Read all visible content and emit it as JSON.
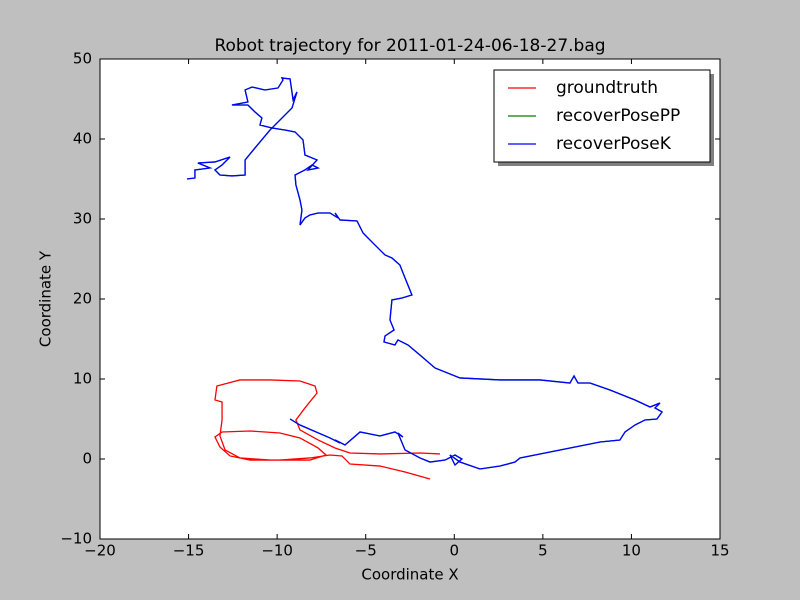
{
  "chart_data": {
    "type": "line",
    "title": "Robot trajectory for 2011-01-24-06-18-27.bag",
    "x_label": "Coordinate X",
    "y_label": "Coordinate Y",
    "xlim": [
      -20,
      15
    ],
    "ylim": [
      -10,
      50
    ],
    "xticks": [
      {
        "value": -20,
        "label": "−20"
      },
      {
        "value": -15,
        "label": "−15"
      },
      {
        "value": -10,
        "label": "−10"
      },
      {
        "value": -5,
        "label": "−5"
      },
      0,
      5,
      10,
      15
    ],
    "yticks": [
      {
        "value": -10,
        "label": "−10"
      },
      0,
      10,
      20,
      30,
      40,
      50
    ],
    "legend": "upper right",
    "series": [
      {
        "name": "groundtruth",
        "color": "#ff0000",
        "x": [
          -1.37,
          -2.78,
          -4.19,
          -5.89,
          -6.34,
          -7.02,
          -8.15,
          -9.84,
          -11.53,
          -12.66,
          -13.23,
          -13.51,
          -13.11,
          -11.53,
          -9.84,
          -8.71,
          -7.69,
          -7.24,
          -8.15,
          -10.4,
          -12.1,
          -12.94,
          -13.23,
          -13.11,
          -13.11,
          -13.51,
          -13.4,
          -12.1,
          -10.4,
          -8.71,
          -7.86,
          -7.75,
          -8.43,
          -8.94,
          -8.71,
          -7.69,
          -6.73,
          -5.89,
          -4.19,
          -1.94,
          -0.81
        ],
        "values": [
          -2.5,
          -1.63,
          -0.88,
          -0.63,
          0.38,
          0.5,
          0.13,
          -0.13,
          -0.13,
          0.38,
          1.5,
          2.75,
          3.38,
          3.5,
          3.25,
          2.63,
          1.38,
          0.5,
          -0.13,
          -0.13,
          0.13,
          1.13,
          2.88,
          4.88,
          7.13,
          7.38,
          9.13,
          9.88,
          9.88,
          9.75,
          9.13,
          8.25,
          6.38,
          4.88,
          3.63,
          2.38,
          1.38,
          0.75,
          0.63,
          0.75,
          0.63
        ]
      },
      {
        "name": "recoverPosePP",
        "color": "#008000",
        "x": [
          -9.27,
          -8.71,
          -7.02,
          -6.45,
          -6.73,
          -6.17,
          -5.32,
          -4.19,
          -3.35,
          -2.9,
          -3.18,
          -2.78,
          -1.94,
          -1.37,
          -0.52,
          0.04,
          0.43,
          0.04,
          -0.24,
          0.32,
          1.45,
          2.58,
          3.43,
          3.71,
          5.97,
          8.23,
          9.35,
          9.64,
          10.2,
          10.77,
          11.44,
          11.73,
          11.33,
          11.61,
          11.05,
          10.2,
          8.79,
          7.66,
          6.98,
          6.76,
          6.53,
          4.84,
          2.58,
          0.32,
          -1.09,
          -1.94,
          -2.61,
          -3.18,
          -3.35,
          -3.97,
          -3.91,
          -3.4,
          -3.63,
          -3.52,
          -2.95,
          -2.39,
          -2.78,
          -3.07,
          -3.52,
          -3.91,
          -4.65,
          -5.15,
          -5.49,
          -6.45,
          -6.73,
          -6.56,
          -7.02,
          -7.69,
          -8.15,
          -8.43,
          -8.71,
          -8.6,
          -8.71,
          -8.94,
          -8.99,
          -8.43,
          -8.03,
          -7.69,
          -8.26,
          -7.75,
          -8.43,
          -8.54,
          -8.99,
          -9.56,
          -10.29,
          -10.97,
          -10.86,
          -11.25,
          -11.65,
          -12.55,
          -11.65,
          -11.81,
          -11.42,
          -10.69,
          -9.95,
          -9.67,
          -9.73,
          -9.27,
          -9.1,
          -8.88,
          -9.16,
          -10.4,
          -11.25,
          -11.81,
          -11.81,
          -12.55,
          -13.23,
          -13.51,
          -13.11,
          -12.66,
          -13.51,
          -14.47,
          -13.79,
          -14.64,
          -14.64,
          -15.09
        ],
        "values": [
          5.0,
          4.25,
          2.63,
          2.0,
          2.38,
          1.75,
          3.38,
          2.88,
          3.38,
          2.75,
          3.25,
          1.13,
          0.13,
          -0.38,
          -0.13,
          0.5,
          0.0,
          -0.75,
          0.5,
          -0.38,
          -1.25,
          -0.88,
          -0.38,
          0.13,
          1.13,
          2.13,
          2.38,
          3.38,
          4.25,
          4.88,
          5.0,
          5.88,
          6.38,
          7.0,
          6.5,
          7.38,
          8.63,
          9.5,
          9.5,
          10.38,
          9.5,
          9.88,
          9.88,
          10.13,
          11.38,
          13.0,
          14.25,
          14.88,
          14.25,
          14.63,
          15.38,
          16.13,
          17.38,
          19.88,
          20.13,
          20.5,
          22.63,
          24.25,
          25.13,
          25.5,
          27.13,
          28.25,
          29.75,
          29.88,
          30.75,
          30.13,
          30.75,
          30.75,
          30.5,
          30.13,
          29.25,
          31.13,
          32.38,
          34.25,
          35.5,
          36.13,
          36.75,
          36.38,
          36.13,
          37.38,
          38.0,
          39.88,
          40.88,
          41.13,
          41.38,
          41.75,
          42.63,
          43.38,
          44.25,
          44.25,
          44.63,
          46.13,
          46.5,
          46.13,
          46.38,
          47.38,
          47.63,
          47.5,
          44.88,
          45.88,
          43.88,
          41.13,
          38.88,
          37.38,
          35.5,
          35.38,
          35.5,
          36.13,
          36.75,
          37.75,
          37.13,
          37.0,
          36.38,
          36.13,
          35.13,
          35.0
        ]
      },
      {
        "name": "recoverPoseK",
        "color": "#0000ff",
        "x": [
          -9.27,
          -8.71,
          -7.02,
          -6.45,
          -6.73,
          -6.17,
          -5.32,
          -4.19,
          -3.35,
          -2.9,
          -3.18,
          -2.78,
          -1.94,
          -1.37,
          -0.52,
          0.04,
          0.43,
          0.04,
          -0.24,
          0.32,
          1.45,
          2.58,
          3.43,
          3.71,
          5.97,
          8.23,
          9.35,
          9.64,
          10.2,
          10.77,
          11.44,
          11.73,
          11.33,
          11.61,
          11.05,
          10.2,
          8.79,
          7.66,
          6.98,
          6.76,
          6.53,
          4.84,
          2.58,
          0.32,
          -1.09,
          -1.94,
          -2.61,
          -3.18,
          -3.35,
          -3.97,
          -3.91,
          -3.4,
          -3.63,
          -3.52,
          -2.95,
          -2.39,
          -2.78,
          -3.07,
          -3.52,
          -3.91,
          -4.65,
          -5.15,
          -5.49,
          -6.45,
          -6.73,
          -6.56,
          -7.02,
          -7.69,
          -8.15,
          -8.43,
          -8.71,
          -8.6,
          -8.71,
          -8.94,
          -8.99,
          -8.43,
          -8.03,
          -7.69,
          -8.26,
          -7.75,
          -8.43,
          -8.54,
          -8.99,
          -9.56,
          -10.29,
          -10.97,
          -10.86,
          -11.25,
          -11.65,
          -12.55,
          -11.65,
          -11.81,
          -11.42,
          -10.69,
          -9.95,
          -9.67,
          -9.73,
          -9.27,
          -9.1,
          -8.88,
          -9.16,
          -10.4,
          -11.25,
          -11.81,
          -11.81,
          -12.55,
          -13.23,
          -13.51,
          -13.11,
          -12.66,
          -13.51,
          -14.47,
          -13.79,
          -14.64,
          -14.64,
          -15.09
        ],
        "values": [
          5.0,
          4.25,
          2.63,
          2.0,
          2.38,
          1.75,
          3.38,
          2.88,
          3.38,
          2.75,
          3.25,
          1.13,
          0.13,
          -0.38,
          -0.13,
          0.5,
          0.0,
          -0.75,
          0.5,
          -0.38,
          -1.25,
          -0.88,
          -0.38,
          0.13,
          1.13,
          2.13,
          2.38,
          3.38,
          4.25,
          4.88,
          5.0,
          5.88,
          6.38,
          7.0,
          6.5,
          7.38,
          8.63,
          9.5,
          9.5,
          10.38,
          9.5,
          9.88,
          9.88,
          10.13,
          11.38,
          13.0,
          14.25,
          14.88,
          14.25,
          14.63,
          15.38,
          16.13,
          17.38,
          19.88,
          20.13,
          20.5,
          22.63,
          24.25,
          25.13,
          25.5,
          27.13,
          28.25,
          29.75,
          29.88,
          30.75,
          30.13,
          30.75,
          30.75,
          30.5,
          30.13,
          29.25,
          31.13,
          32.38,
          34.25,
          35.5,
          36.13,
          36.75,
          36.38,
          36.13,
          37.38,
          38.0,
          39.88,
          40.88,
          41.13,
          41.38,
          41.75,
          42.63,
          43.38,
          44.25,
          44.25,
          44.63,
          46.13,
          46.5,
          46.13,
          46.38,
          47.38,
          47.63,
          47.5,
          44.88,
          45.88,
          43.88,
          41.13,
          38.88,
          37.38,
          35.5,
          35.38,
          35.5,
          36.13,
          36.75,
          37.75,
          37.13,
          37.0,
          36.38,
          36.13,
          35.13,
          35.0
        ]
      }
    ]
  }
}
